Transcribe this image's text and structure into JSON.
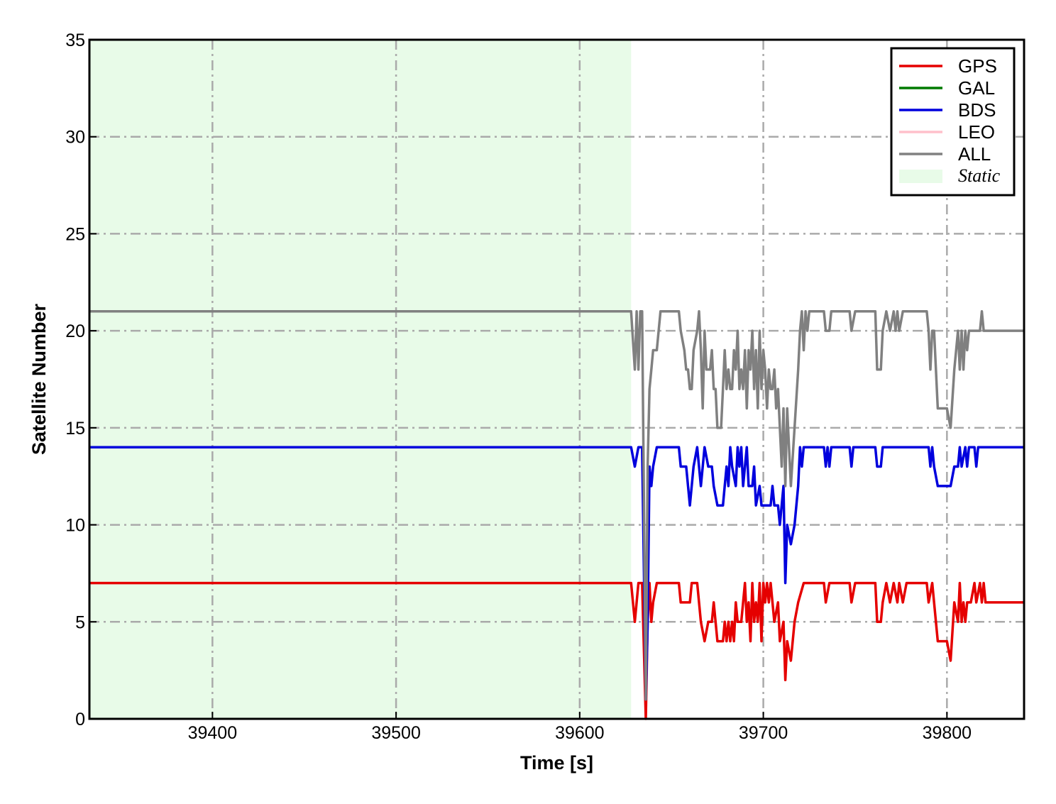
{
  "chart_data": {
    "type": "line",
    "title": "",
    "xlabel": "Time [s]",
    "ylabel": "Satellite Number",
    "xlim": [
      39333,
      39842
    ],
    "ylim": [
      0,
      35
    ],
    "x_ticks": [
      39400,
      39500,
      39600,
      39700,
      39800
    ],
    "y_ticks": [
      0,
      5,
      10,
      15,
      20,
      25,
      30,
      35
    ],
    "grid": true,
    "legend_position": "top-right",
    "shaded_regions": [
      {
        "name": "Static",
        "x_start": 39333,
        "x_end": 39628,
        "color": "#e8fbe8"
      }
    ],
    "series": [
      {
        "name": "GPS",
        "color": "#e50000",
        "points": [
          [
            39333,
            7
          ],
          [
            39628,
            7
          ],
          [
            39630,
            5
          ],
          [
            39632,
            7
          ],
          [
            39634,
            7
          ],
          [
            39636,
            0
          ],
          [
            39637,
            5
          ],
          [
            39638,
            7
          ],
          [
            39639,
            5
          ],
          [
            39640,
            6
          ],
          [
            39642,
            7
          ],
          [
            39654,
            7
          ],
          [
            39655,
            6
          ],
          [
            39660,
            6
          ],
          [
            39661,
            7
          ],
          [
            39664,
            7
          ],
          [
            39666,
            5
          ],
          [
            39668,
            4
          ],
          [
            39670,
            5
          ],
          [
            39672,
            5
          ],
          [
            39673,
            6
          ],
          [
            39675,
            4
          ],
          [
            39678,
            4
          ],
          [
            39679,
            5
          ],
          [
            39680,
            4
          ],
          [
            39681,
            5
          ],
          [
            39682,
            4
          ],
          [
            39683,
            5
          ],
          [
            39684,
            4
          ],
          [
            39685,
            6
          ],
          [
            39686,
            5
          ],
          [
            39688,
            5
          ],
          [
            39690,
            7
          ],
          [
            39691,
            5
          ],
          [
            39692,
            6
          ],
          [
            39693,
            4
          ],
          [
            39694,
            7
          ],
          [
            39695,
            5
          ],
          [
            39696,
            6
          ],
          [
            39697,
            5
          ],
          [
            39698,
            7
          ],
          [
            39699,
            4
          ],
          [
            39700,
            7
          ],
          [
            39701,
            6
          ],
          [
            39702,
            7
          ],
          [
            39703,
            6
          ],
          [
            39704,
            7
          ],
          [
            39705,
            6
          ],
          [
            39706,
            5
          ],
          [
            39708,
            6
          ],
          [
            39709,
            4
          ],
          [
            39711,
            5
          ],
          [
            39712,
            2
          ],
          [
            39713,
            4
          ],
          [
            39715,
            3
          ],
          [
            39717,
            5
          ],
          [
            39719,
            6
          ],
          [
            39722,
            7
          ],
          [
            39733,
            7
          ],
          [
            39734,
            6
          ],
          [
            39736,
            7
          ],
          [
            39747,
            7
          ],
          [
            39748,
            6
          ],
          [
            39750,
            7
          ],
          [
            39761,
            7
          ],
          [
            39762,
            5
          ],
          [
            39764,
            5
          ],
          [
            39765,
            6
          ],
          [
            39767,
            7
          ],
          [
            39769,
            6
          ],
          [
            39771,
            7
          ],
          [
            39773,
            6
          ],
          [
            39774,
            7
          ],
          [
            39776,
            6
          ],
          [
            39778,
            7
          ],
          [
            39789,
            7
          ],
          [
            39790,
            6
          ],
          [
            39792,
            7
          ],
          [
            39793,
            6
          ],
          [
            39795,
            4
          ],
          [
            39800,
            4
          ],
          [
            39802,
            3
          ],
          [
            39804,
            6
          ],
          [
            39806,
            5
          ],
          [
            39807,
            7
          ],
          [
            39808,
            5
          ],
          [
            39809,
            6
          ],
          [
            39810,
            5
          ],
          [
            39811,
            6
          ],
          [
            39813,
            6
          ],
          [
            39815,
            7
          ],
          [
            39816,
            6
          ],
          [
            39818,
            7
          ],
          [
            39819,
            6
          ],
          [
            39820,
            7
          ],
          [
            39821,
            6
          ],
          [
            39842,
            6
          ]
        ]
      },
      {
        "name": "GAL",
        "color": "#007a00",
        "points": []
      },
      {
        "name": "BDS",
        "color": "#0000dd",
        "points": [
          [
            39333,
            14
          ],
          [
            39628,
            14
          ],
          [
            39630,
            13
          ],
          [
            39632,
            14
          ],
          [
            39634,
            14
          ],
          [
            39636,
            1
          ],
          [
            39637,
            5
          ],
          [
            39638,
            13
          ],
          [
            39639,
            12
          ],
          [
            39640,
            13
          ],
          [
            39642,
            14
          ],
          [
            39654,
            14
          ],
          [
            39655,
            13
          ],
          [
            39658,
            13
          ],
          [
            39659,
            12
          ],
          [
            39660,
            11
          ],
          [
            39662,
            13
          ],
          [
            39664,
            14
          ],
          [
            39666,
            12
          ],
          [
            39668,
            14
          ],
          [
            39670,
            13
          ],
          [
            39672,
            13
          ],
          [
            39673,
            12
          ],
          [
            39675,
            11
          ],
          [
            39678,
            11
          ],
          [
            39679,
            12
          ],
          [
            39680,
            13
          ],
          [
            39681,
            12
          ],
          [
            39682,
            14
          ],
          [
            39683,
            13
          ],
          [
            39685,
            12
          ],
          [
            39686,
            14
          ],
          [
            39687,
            13
          ],
          [
            39688,
            14
          ],
          [
            39689,
            12
          ],
          [
            39690,
            13
          ],
          [
            39691,
            14
          ],
          [
            39692,
            12
          ],
          [
            39694,
            12
          ],
          [
            39695,
            13
          ],
          [
            39696,
            11
          ],
          [
            39698,
            12
          ],
          [
            39699,
            11
          ],
          [
            39704,
            11
          ],
          [
            39705,
            12
          ],
          [
            39706,
            11
          ],
          [
            39708,
            11
          ],
          [
            39709,
            10
          ],
          [
            39711,
            12
          ],
          [
            39712,
            7
          ],
          [
            39713,
            10
          ],
          [
            39715,
            9
          ],
          [
            39717,
            10
          ],
          [
            39719,
            12
          ],
          [
            39720,
            14
          ],
          [
            39721,
            13
          ],
          [
            39722,
            14
          ],
          [
            39733,
            14
          ],
          [
            39734,
            13
          ],
          [
            39735,
            14
          ],
          [
            39736,
            13
          ],
          [
            39737,
            14
          ],
          [
            39747,
            14
          ],
          [
            39748,
            13
          ],
          [
            39749,
            14
          ],
          [
            39761,
            14
          ],
          [
            39762,
            13
          ],
          [
            39764,
            13
          ],
          [
            39765,
            14
          ],
          [
            39790,
            14
          ],
          [
            39791,
            13
          ],
          [
            39792,
            14
          ],
          [
            39793,
            13
          ],
          [
            39795,
            12
          ],
          [
            39802,
            12
          ],
          [
            39804,
            13
          ],
          [
            39806,
            13
          ],
          [
            39807,
            14
          ],
          [
            39808,
            13
          ],
          [
            39810,
            14
          ],
          [
            39811,
            13
          ],
          [
            39812,
            14
          ],
          [
            39815,
            14
          ],
          [
            39816,
            13
          ],
          [
            39817,
            14
          ],
          [
            39842,
            14
          ]
        ]
      },
      {
        "name": "LEO",
        "color": "#ffc0cb",
        "points": []
      },
      {
        "name": "ALL",
        "color": "#808080",
        "points": [
          [
            39333,
            21
          ],
          [
            39628,
            21
          ],
          [
            39630,
            18
          ],
          [
            39631,
            21
          ],
          [
            39632,
            18
          ],
          [
            39633,
            21
          ],
          [
            39634,
            21
          ],
          [
            39636,
            1
          ],
          [
            39637,
            13
          ],
          [
            39638,
            17
          ],
          [
            39639,
            18
          ],
          [
            39640,
            19
          ],
          [
            39642,
            19
          ],
          [
            39643,
            20
          ],
          [
            39644,
            21
          ],
          [
            39654,
            21
          ],
          [
            39655,
            20
          ],
          [
            39657,
            19
          ],
          [
            39658,
            18
          ],
          [
            39659,
            18
          ],
          [
            39660,
            17
          ],
          [
            39661,
            17
          ],
          [
            39662,
            19
          ],
          [
            39664,
            20
          ],
          [
            39665,
            21
          ],
          [
            39666,
            19
          ],
          [
            39667,
            16
          ],
          [
            39668,
            20
          ],
          [
            39669,
            18
          ],
          [
            39671,
            18
          ],
          [
            39672,
            19
          ],
          [
            39673,
            17
          ],
          [
            39674,
            17
          ],
          [
            39675,
            15
          ],
          [
            39677,
            15
          ],
          [
            39678,
            17
          ],
          [
            39679,
            19
          ],
          [
            39680,
            17
          ],
          [
            39681,
            18
          ],
          [
            39682,
            17
          ],
          [
            39683,
            17
          ],
          [
            39684,
            19
          ],
          [
            39685,
            18
          ],
          [
            39686,
            20
          ],
          [
            39687,
            17
          ],
          [
            39688,
            18
          ],
          [
            39689,
            17
          ],
          [
            39690,
            19
          ],
          [
            39691,
            16
          ],
          [
            39692,
            19
          ],
          [
            39693,
            18
          ],
          [
            39694,
            20
          ],
          [
            39695,
            17
          ],
          [
            39696,
            19
          ],
          [
            39697,
            16
          ],
          [
            39698,
            20
          ],
          [
            39699,
            17
          ],
          [
            39700,
            19
          ],
          [
            39701,
            18
          ],
          [
            39702,
            16
          ],
          [
            39703,
            18
          ],
          [
            39704,
            17
          ],
          [
            39705,
            17
          ],
          [
            39706,
            18
          ],
          [
            39707,
            16
          ],
          [
            39708,
            17
          ],
          [
            39709,
            15
          ],
          [
            39710,
            13
          ],
          [
            39711,
            16
          ],
          [
            39712,
            12
          ],
          [
            39713,
            16
          ],
          [
            39715,
            12
          ],
          [
            39717,
            15
          ],
          [
            39719,
            18
          ],
          [
            39720,
            20
          ],
          [
            39721,
            21
          ],
          [
            39722,
            19
          ],
          [
            39723,
            21
          ],
          [
            39724,
            20
          ],
          [
            39725,
            21
          ],
          [
            39733,
            21
          ],
          [
            39734,
            20
          ],
          [
            39736,
            20
          ],
          [
            39737,
            21
          ],
          [
            39747,
            21
          ],
          [
            39748,
            20
          ],
          [
            39750,
            21
          ],
          [
            39761,
            21
          ],
          [
            39762,
            18
          ],
          [
            39764,
            18
          ],
          [
            39765,
            20
          ],
          [
            39767,
            21
          ],
          [
            39769,
            20
          ],
          [
            39771,
            21
          ],
          [
            39772,
            20
          ],
          [
            39773,
            21
          ],
          [
            39774,
            20
          ],
          [
            39776,
            21
          ],
          [
            39789,
            21
          ],
          [
            39790,
            20
          ],
          [
            39791,
            18
          ],
          [
            39792,
            20
          ],
          [
            39793,
            20
          ],
          [
            39795,
            16
          ],
          [
            39800,
            16
          ],
          [
            39802,
            15
          ],
          [
            39804,
            18
          ],
          [
            39806,
            20
          ],
          [
            39807,
            18
          ],
          [
            39808,
            20
          ],
          [
            39809,
            18
          ],
          [
            39810,
            20
          ],
          [
            39811,
            19
          ],
          [
            39812,
            20
          ],
          [
            39813,
            20
          ],
          [
            39815,
            20
          ],
          [
            39816,
            20
          ],
          [
            39818,
            20
          ],
          [
            39819,
            21
          ],
          [
            39820,
            20
          ],
          [
            39842,
            20
          ]
        ]
      }
    ]
  }
}
